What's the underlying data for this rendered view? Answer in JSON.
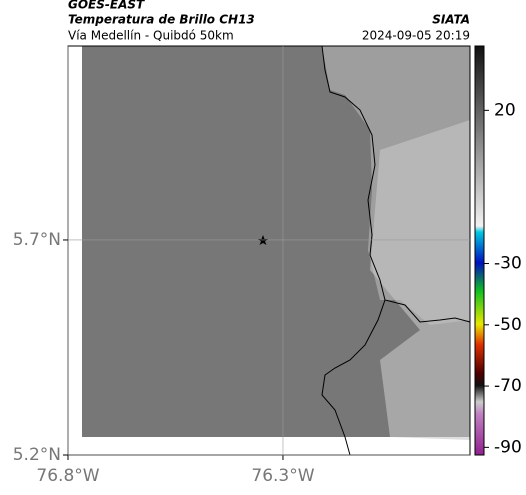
{
  "header": {
    "source": "GOES-EAST",
    "title": "Temperatura de Brillo CH13",
    "org": "SIATA",
    "subtitle": "Vía Medellín - Quibdó 50km",
    "timestamp": "2024-09-05 20:19"
  },
  "map": {
    "xlim": [
      -76.8,
      -75.865
    ],
    "ylim": [
      5.2,
      6.151
    ],
    "xticks": [
      {
        "value": -76.8,
        "label": "76.8°W"
      },
      {
        "value": -76.3,
        "label": "76.3°W"
      }
    ],
    "yticks": [
      {
        "value": 5.2,
        "label": "5.2°N"
      },
      {
        "value": 5.7,
        "label": "5.7°N"
      }
    ]
  },
  "colorbar": {
    "lim": [
      -92.5,
      41
    ],
    "ticks": [
      20,
      -30,
      -50,
      -70,
      -90
    ]
  }
}
